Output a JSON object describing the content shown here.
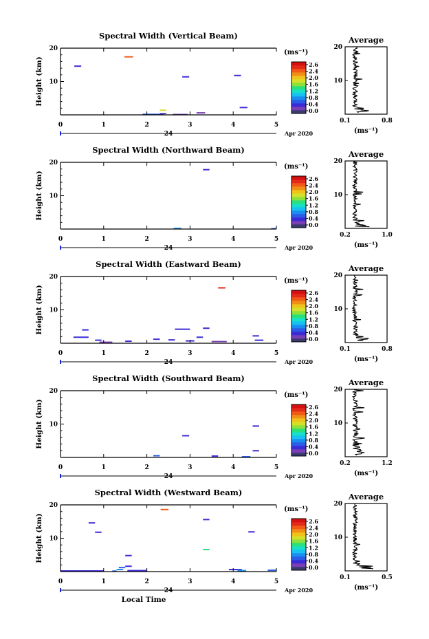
{
  "chart_data": [
    {
      "type": "heatmap",
      "title": "Spectral Width (Vertical Beam)",
      "ylabel": "Height (km)",
      "xlim": [
        0,
        5
      ],
      "ylim": [
        0,
        20
      ],
      "xticks": [
        "0",
        "1",
        "2",
        "3",
        "4",
        "5"
      ],
      "yticks": [
        "20",
        "10"
      ],
      "day_label": "24",
      "date_label": "Apr 2020",
      "colorbar": {
        "unit": "(ms⁻¹)",
        "labels": [
          "2.6",
          "2.4",
          "2.0",
          "1.6",
          "1.2",
          "0.8",
          "0.4",
          "0.0"
        ]
      },
      "segments": [
        {
          "t0": 0.32,
          "t1": 0.48,
          "h": 14.6,
          "v": 0.55
        },
        {
          "t0": 1.48,
          "t1": 1.68,
          "h": 17.4,
          "v": 2.3
        },
        {
          "t0": 2.82,
          "t1": 2.98,
          "h": 11.4,
          "v": 0.5
        },
        {
          "t0": 4.02,
          "t1": 4.18,
          "h": 11.8,
          "v": 0.55
        },
        {
          "t0": 2.3,
          "t1": 2.45,
          "h": 1.4,
          "v": 1.8
        },
        {
          "t0": 2.3,
          "t1": 2.45,
          "h": 0.4,
          "v": 0.25
        },
        {
          "t0": 1.9,
          "t1": 2.4,
          "h": 0.15,
          "v": 0.6
        },
        {
          "t0": 3.15,
          "t1": 3.35,
          "h": 0.6,
          "v": 0.3
        },
        {
          "t0": 2.6,
          "t1": 2.95,
          "h": 0.1,
          "v": 0.3
        },
        {
          "t0": 4.15,
          "t1": 4.33,
          "h": 2.2,
          "v": 0.4
        }
      ],
      "average": {
        "title": "Average",
        "xticks": [
          "0.1",
          "0.8"
        ],
        "xlim": [
          0.1,
          0.8
        ],
        "xunit": "(ms⁻¹)"
      }
    },
    {
      "type": "heatmap",
      "title": "Spectral Width (Northward Beam)",
      "ylabel": "Height (km)",
      "xlim": [
        0,
        5
      ],
      "ylim": [
        0,
        20
      ],
      "xticks": [
        "0",
        "1",
        "2",
        "3",
        "4",
        "5"
      ],
      "yticks": [
        "20",
        "10"
      ],
      "day_label": "24",
      "date_label": "Apr 2020",
      "colorbar": {
        "unit": "(ms⁻¹)",
        "labels": [
          "2.6",
          "2.4",
          "2.0",
          "1.6",
          "1.2",
          "0.8",
          "0.4",
          "0.0"
        ]
      },
      "segments": [
        {
          "t0": 3.3,
          "t1": 3.45,
          "h": 17.8,
          "v": 0.5
        },
        {
          "t0": 2.62,
          "t1": 2.8,
          "h": 0.2,
          "v": 0.9
        },
        {
          "t0": 4.88,
          "t1": 5.0,
          "h": 0.1,
          "v": 0.6
        }
      ],
      "average": {
        "title": "Average",
        "xticks": [
          "0.2",
          "1.0"
        ],
        "xlim": [
          0.2,
          1.0
        ],
        "xunit": "(ms⁻¹)"
      }
    },
    {
      "type": "heatmap",
      "title": "Spectral Width (Eastward Beam)",
      "ylabel": "Height (km)",
      "xlim": [
        0,
        5
      ],
      "ylim": [
        0,
        20
      ],
      "xticks": [
        "0",
        "1",
        "2",
        "3",
        "4",
        "5"
      ],
      "yticks": [
        "20",
        "10"
      ],
      "day_label": "24",
      "date_label": "Apr 2020",
      "colorbar": {
        "unit": "(ms⁻¹)",
        "labels": [
          "2.6",
          "2.4",
          "2.0",
          "1.6",
          "1.2",
          "0.8",
          "0.4",
          "0.0"
        ]
      },
      "segments": [
        {
          "t0": 3.65,
          "t1": 3.82,
          "h": 16.6,
          "v": 2.5
        },
        {
          "t0": 0.5,
          "t1": 0.65,
          "h": 4.0,
          "v": 0.55
        },
        {
          "t0": 0.3,
          "t1": 0.65,
          "h": 1.8,
          "v": 0.5
        },
        {
          "t0": 0.8,
          "t1": 0.95,
          "h": 0.9,
          "v": 0.4
        },
        {
          "t0": 2.65,
          "t1": 3.0,
          "h": 4.2,
          "v": 0.5
        },
        {
          "t0": 3.3,
          "t1": 3.45,
          "h": 4.5,
          "v": 0.5
        },
        {
          "t0": 3.15,
          "t1": 3.3,
          "h": 1.8,
          "v": 0.45
        },
        {
          "t0": 2.15,
          "t1": 2.3,
          "h": 1.2,
          "v": 0.5
        },
        {
          "t0": 2.5,
          "t1": 2.65,
          "h": 1.0,
          "v": 0.4
        },
        {
          "t0": 1.5,
          "t1": 1.65,
          "h": 0.6,
          "v": 0.4
        },
        {
          "t0": 3.5,
          "t1": 3.85,
          "h": 0.5,
          "v": 0.35
        },
        {
          "t0": 4.45,
          "t1": 4.6,
          "h": 2.2,
          "v": 0.5
        },
        {
          "t0": 4.5,
          "t1": 4.7,
          "h": 0.9,
          "v": 0.45
        },
        {
          "t0": 0.9,
          "t1": 1.2,
          "h": 0.3,
          "v": 0.3
        },
        {
          "t0": 2.9,
          "t1": 3.1,
          "h": 0.7,
          "v": 0.5
        }
      ],
      "average": {
        "title": "Average",
        "xticks": [
          "0.1",
          "0.8"
        ],
        "xlim": [
          0.1,
          0.8
        ],
        "xunit": "(ms⁻¹)"
      }
    },
    {
      "type": "heatmap",
      "title": "Spectral Width (Southward Beam)",
      "ylabel": "Height (km)",
      "xlim": [
        0,
        5
      ],
      "ylim": [
        0,
        20
      ],
      "xticks": [
        "0",
        "1",
        "2",
        "3",
        "4",
        "5"
      ],
      "yticks": [
        "20",
        "10"
      ],
      "day_label": "24",
      "date_label": "Apr 2020",
      "colorbar": {
        "unit": "(ms⁻¹)",
        "labels": [
          "2.6",
          "2.4",
          "2.0",
          "1.6",
          "1.2",
          "0.8",
          "0.4",
          "0.0"
        ]
      },
      "segments": [
        {
          "t0": 2.82,
          "t1": 2.98,
          "h": 6.5,
          "v": 0.5
        },
        {
          "t0": 4.45,
          "t1": 4.6,
          "h": 9.4,
          "v": 0.5
        },
        {
          "t0": 4.45,
          "t1": 4.6,
          "h": 2.0,
          "v": 0.5
        },
        {
          "t0": 2.15,
          "t1": 2.3,
          "h": 0.5,
          "v": 0.6
        },
        {
          "t0": 3.5,
          "t1": 3.65,
          "h": 0.4,
          "v": 0.45
        },
        {
          "t0": 4.2,
          "t1": 4.4,
          "h": 0.2,
          "v": 0.6
        }
      ],
      "average": {
        "title": "Average",
        "xticks": [
          "0.2",
          "1.2"
        ],
        "xlim": [
          0.2,
          1.2
        ],
        "xunit": "(ms⁻¹)"
      }
    },
    {
      "type": "heatmap",
      "title": "Spectral Width (Westward Beam)",
      "ylabel": "Height (km)",
      "xlim": [
        0,
        5
      ],
      "ylim": [
        0,
        20
      ],
      "xticks": [
        "0",
        "1",
        "2",
        "3",
        "4",
        "5"
      ],
      "yticks": [
        "20",
        "10"
      ],
      "day_label": "24",
      "date_label": "Apr 2020",
      "xlabel": "Local Time",
      "colorbar": {
        "unit": "(ms⁻¹)",
        "labels": [
          "2.6",
          "2.4",
          "2.0",
          "1.6",
          "1.2",
          "0.8",
          "0.4",
          "0.0"
        ]
      },
      "segments": [
        {
          "t0": 2.32,
          "t1": 2.5,
          "h": 18.6,
          "v": 2.3
        },
        {
          "t0": 3.3,
          "t1": 3.45,
          "h": 15.6,
          "v": 0.5
        },
        {
          "t0": 0.65,
          "t1": 0.8,
          "h": 14.6,
          "v": 0.5
        },
        {
          "t0": 0.8,
          "t1": 0.95,
          "h": 11.8,
          "v": 0.55
        },
        {
          "t0": 3.3,
          "t1": 3.45,
          "h": 6.6,
          "v": 1.4
        },
        {
          "t0": 4.35,
          "t1": 4.5,
          "h": 11.9,
          "v": 0.45
        },
        {
          "t0": 1.5,
          "t1": 1.65,
          "h": 4.8,
          "v": 0.5
        },
        {
          "t0": 1.5,
          "t1": 1.65,
          "h": 1.6,
          "v": 0.5
        },
        {
          "t0": 1.35,
          "t1": 1.5,
          "h": 1.2,
          "v": 0.6
        },
        {
          "t0": 1.3,
          "t1": 1.45,
          "h": 0.6,
          "v": 0.9
        },
        {
          "t0": 1.55,
          "t1": 2.0,
          "h": 0.3,
          "v": 0.45
        },
        {
          "t0": 0.0,
          "t1": 1.0,
          "h": 0.2,
          "v": 0.4
        },
        {
          "t0": 3.9,
          "t1": 4.2,
          "h": 0.6,
          "v": 0.5
        },
        {
          "t0": 4.1,
          "t1": 4.3,
          "h": 0.3,
          "v": 0.9
        },
        {
          "t0": 4.8,
          "t1": 5.0,
          "h": 0.4,
          "v": 0.6
        },
        {
          "t0": 1.2,
          "t1": 1.3,
          "h": 0.15,
          "v": 0.6
        }
      ],
      "average": {
        "title": "Average",
        "xticks": [
          "0.1",
          "0.5"
        ],
        "xlim": [
          0.1,
          0.5
        ],
        "xunit": "(ms⁻¹)"
      }
    }
  ]
}
